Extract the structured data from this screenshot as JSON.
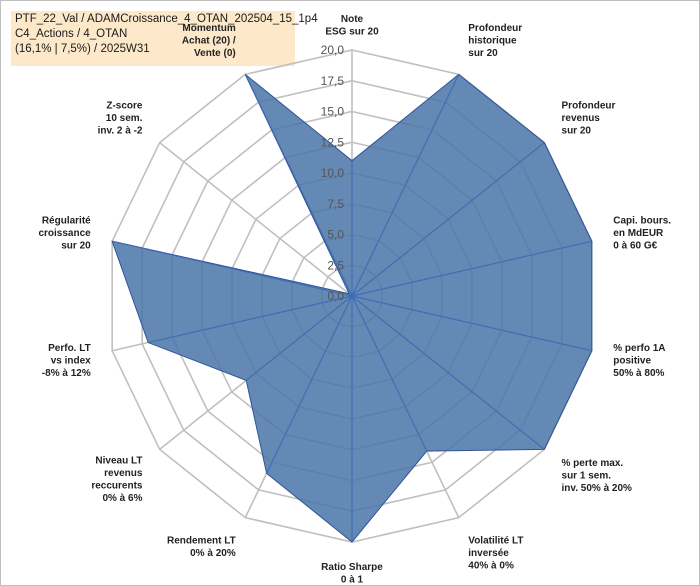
{
  "header": {
    "line1": "PTF_22_Val / ADAMCroissance_4_OTAN_202504_15_1p4",
    "line2": "C4_Actions / 4_OTAN",
    "line3": "(16,1% | 7,5%) / 2025W31"
  },
  "chart_data": {
    "type": "radar",
    "ylim": [
      0,
      20
    ],
    "ticks": [
      "0,0",
      "2,5",
      "5,0",
      "7,5",
      "10,0",
      "12,5",
      "15,0",
      "17,5",
      "20,0"
    ],
    "grid": true,
    "fill_color": "#4a74a8",
    "grid_color": "#c0c0c0",
    "axes": [
      {
        "label": [
          "Note",
          "ESG sur 20"
        ],
        "value": 11
      },
      {
        "label": [
          "Profondeur",
          "historique",
          "sur 20"
        ],
        "value": 20
      },
      {
        "label": [
          "Profondeur",
          "revenus",
          "sur 20"
        ],
        "value": 20
      },
      {
        "label": [
          "Capi. bours.",
          "en MdEUR",
          "0 à 60 G€"
        ],
        "value": 20
      },
      {
        "label": [
          "% perfo 1A",
          "positive",
          "50% à 80%"
        ],
        "value": 20
      },
      {
        "label": [
          "% perte max.",
          "sur 1 sem.",
          "inv. 50% à 20%"
        ],
        "value": 20
      },
      {
        "label": [
          "Volatilité LT",
          "inversée",
          "40% à 0%"
        ],
        "value": 14
      },
      {
        "label": [
          "Ratio Sharpe",
          "0 à 1"
        ],
        "value": 20
      },
      {
        "label": [
          "Rendement LT",
          "0% à 20%"
        ],
        "value": 16
      },
      {
        "label": [
          "Niveau LT",
          "revenus",
          "reccurents",
          "0% à 6%"
        ],
        "value": 11
      },
      {
        "label": [
          "Perfo. LT",
          "vs index",
          "-8% à 12%"
        ],
        "value": 17
      },
      {
        "label": [
          "Régularité",
          "croissance",
          "sur 20"
        ],
        "value": 20
      },
      {
        "label": [
          "Z-score",
          "10 sem.",
          "inv. 2 à -2"
        ],
        "value": 0.3
      },
      {
        "label": [
          "Momentum",
          "Achat (20) /",
          "Vente (0)"
        ],
        "value": 20
      }
    ]
  }
}
